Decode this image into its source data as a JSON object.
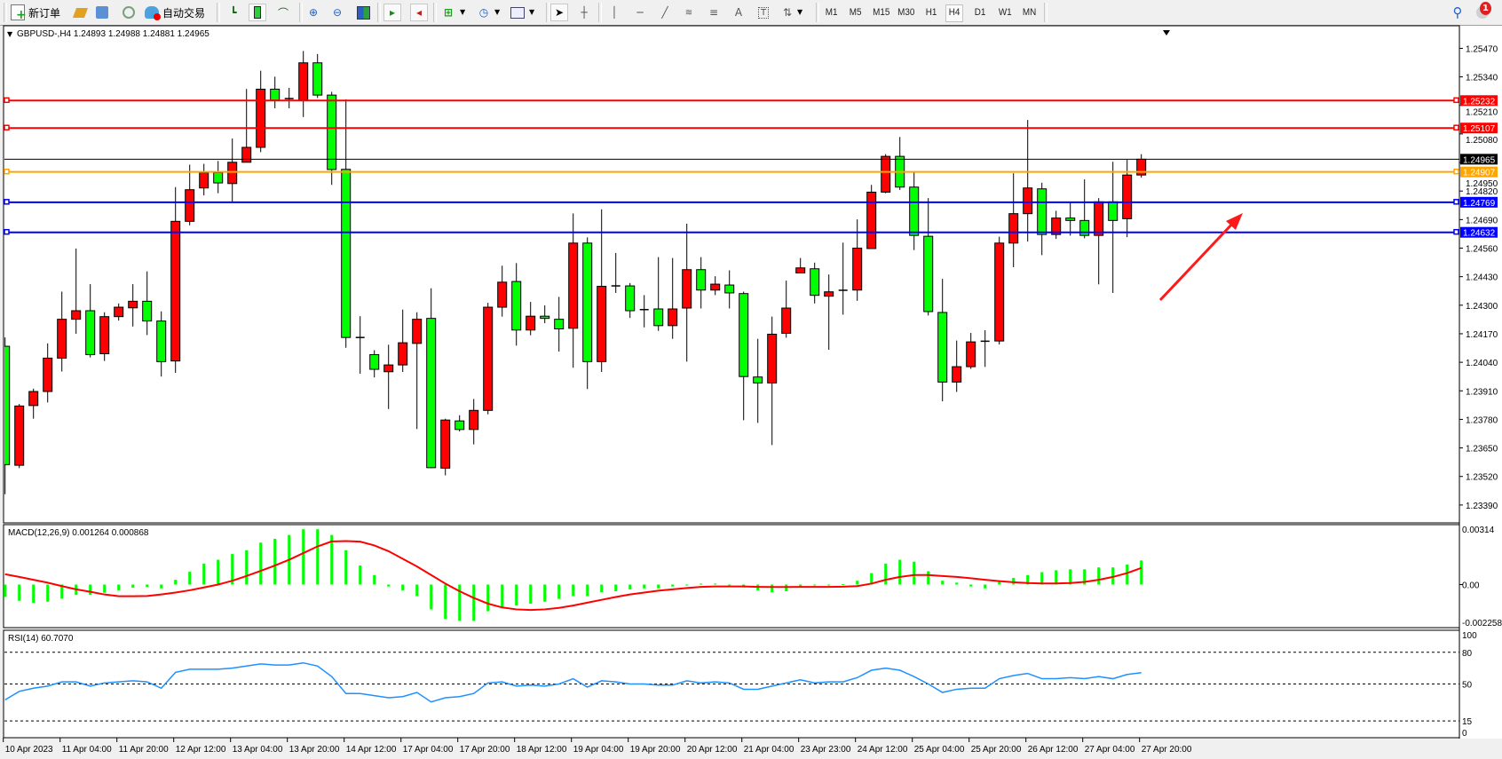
{
  "toolbar": {
    "new_order_label": "新订单",
    "auto_trading_label": "自动交易",
    "timeframes": [
      "M1",
      "M5",
      "M15",
      "M30",
      "H1",
      "H4",
      "D1",
      "W1",
      "MN"
    ],
    "active_timeframe": "H4",
    "notification_count": "1",
    "icons": [
      "new-order-icon",
      "metaeditor-icon",
      "market-watch-icon",
      "signals-icon",
      "auto-trading-icon",
      "bar-chart-icon",
      "candlestick-icon",
      "line-chart-icon",
      "zoom-in-icon",
      "zoom-out-icon",
      "tile-windows-icon",
      "auto-scroll-icon",
      "chart-shift-icon",
      "indicators-icon",
      "periods-icon",
      "templates-icon",
      "cursor-icon",
      "crosshair-icon",
      "vertical-line-icon",
      "horizontal-line-icon",
      "trendline-icon",
      "fibonacci-expansion-icon",
      "fibonacci-retracement-icon",
      "text-icon",
      "text-label-icon",
      "arrows-icon",
      "search-icon",
      "notification-icon"
    ]
  },
  "chart": {
    "title": "GBPUSD-,H4  1.24893 1.24988 1.24881 1.24965",
    "macd_label": "MACD(12,26,9) 0.001264 0.000868",
    "rsi_label": "RSI(14) 60.7070"
  },
  "chart_data": [
    {
      "type": "candlestick",
      "symbol": "GBPUSD-",
      "timeframe": "H4",
      "colors": {
        "bull": "#ff0000",
        "bear": "#00ff00",
        "doji": "#000000",
        "background": "#ffffff"
      },
      "x_labels": [
        "10 Apr 2023",
        "11 Apr 04:00",
        "11 Apr 20:00",
        "12 Apr 12:00",
        "13 Apr 04:00",
        "13 Apr 20:00",
        "14 Apr 12:00",
        "17 Apr 04:00",
        "17 Apr 20:00",
        "18 Apr 12:00",
        "19 Apr 04:00",
        "19 Apr 20:00",
        "20 Apr 12:00",
        "21 Apr 04:00",
        "23 Apr 23:00",
        "24 Apr 12:00",
        "25 Apr 04:00",
        "25 Apr 20:00",
        "26 Apr 12:00",
        "27 Apr 04:00",
        "27 Apr 20:00"
      ],
      "x_label_every": 4,
      "y_ticks": [
        "1.25470",
        "1.25340",
        "1.25210",
        "1.25080",
        "1.24950",
        "1.24820",
        "1.24690",
        "1.24560",
        "1.24430",
        "1.24300",
        "1.24170",
        "1.24040",
        "1.23910",
        "1.23780",
        "1.23650",
        "1.23520",
        "1.23390"
      ],
      "ylim": [
        1.23313,
        1.25573
      ],
      "ohlc_order": [
        "open",
        "high",
        "low",
        "close"
      ],
      "ohlc": [
        [
          1.24113,
          1.24153,
          1.23439,
          1.23574
        ],
        [
          1.23571,
          1.2385,
          1.23558,
          1.23841
        ],
        [
          1.23843,
          1.2392,
          1.23783,
          1.23907
        ],
        [
          1.23907,
          1.24126,
          1.23857,
          1.24059
        ],
        [
          1.24059,
          1.24362,
          1.23998,
          1.24236
        ],
        [
          1.24236,
          1.24558,
          1.2417,
          1.24275
        ],
        [
          1.24275,
          1.24396,
          1.24062,
          1.24075
        ],
        [
          1.24079,
          1.24268,
          1.24046,
          1.24248
        ],
        [
          1.24248,
          1.24308,
          1.2423,
          1.24291
        ],
        [
          1.24288,
          1.24396,
          1.24203,
          1.24318
        ],
        [
          1.24318,
          1.24454,
          1.24164,
          1.24228
        ],
        [
          1.24228,
          1.24272,
          1.23975,
          1.24043
        ],
        [
          1.24046,
          1.24838,
          1.23992,
          1.24682
        ],
        [
          1.24682,
          1.2494,
          1.24664,
          1.24826
        ],
        [
          1.24834,
          1.24944,
          1.248,
          1.24904
        ],
        [
          1.24904,
          1.24957,
          1.2481,
          1.24857
        ],
        [
          1.24854,
          1.25059,
          1.24771,
          1.24951
        ],
        [
          1.24951,
          1.25285,
          1.24951,
          1.25019
        ],
        [
          1.25019,
          1.25368,
          1.24997,
          1.25284
        ],
        [
          1.25284,
          1.25341,
          1.25197,
          1.25234
        ],
        [
          1.25241,
          1.2529,
          1.25197,
          1.25241
        ],
        [
          1.25234,
          1.25458,
          1.25157,
          1.25404
        ],
        [
          1.25404,
          1.25444,
          1.25244,
          1.25257
        ],
        [
          1.25257,
          1.25272,
          1.24848,
          1.24918
        ],
        [
          1.24919,
          1.25238,
          1.24106,
          1.24153
        ],
        [
          1.24153,
          1.2425,
          1.23988,
          1.24153
        ],
        [
          1.24075,
          1.24095,
          1.23971,
          1.24008
        ],
        [
          1.23997,
          1.2412,
          1.23827,
          1.24028
        ],
        [
          1.24028,
          1.2428,
          1.23996,
          1.24129
        ],
        [
          1.24126,
          1.24268,
          1.23736,
          1.24236
        ],
        [
          1.2424,
          1.24377,
          1.23558,
          1.2356
        ],
        [
          1.23558,
          1.23783,
          1.23525,
          1.23777
        ],
        [
          1.23773,
          1.23799,
          1.23725,
          1.23734
        ],
        [
          1.23734,
          1.23873,
          1.23666,
          1.23821
        ],
        [
          1.23821,
          1.24311,
          1.23803,
          1.24291
        ],
        [
          1.24291,
          1.2448,
          1.24248,
          1.24405
        ],
        [
          1.24408,
          1.24492,
          1.24116,
          1.24187
        ],
        [
          1.24187,
          1.24315,
          1.24163,
          1.2425
        ],
        [
          1.2425,
          1.24299,
          1.24218,
          1.2424
        ],
        [
          1.24236,
          1.24338,
          1.24089,
          1.24192
        ],
        [
          1.24195,
          1.24718,
          1.24015,
          1.24583
        ],
        [
          1.24583,
          1.24609,
          1.23918,
          1.24043
        ],
        [
          1.24043,
          1.24737,
          1.23996,
          1.24386
        ],
        [
          1.24388,
          1.24538,
          1.24356,
          1.24388
        ],
        [
          1.24388,
          1.24401,
          1.24242,
          1.24275
        ],
        [
          1.2428,
          1.24346,
          1.24199,
          1.2428
        ],
        [
          1.24283,
          1.24519,
          1.24183,
          1.24207
        ],
        [
          1.24207,
          1.24515,
          1.24147,
          1.24283
        ],
        [
          1.24287,
          1.24671,
          1.24043,
          1.24462
        ],
        [
          1.24462,
          1.24519,
          1.24285,
          1.24369
        ],
        [
          1.24369,
          1.24432,
          1.24346,
          1.24396
        ],
        [
          1.24392,
          1.24459,
          1.24285,
          1.24356
        ],
        [
          1.24353,
          1.24362,
          1.23776,
          1.23975
        ],
        [
          1.23973,
          1.24147,
          1.23764,
          1.23946
        ],
        [
          1.23946,
          1.24248,
          1.23663,
          1.24168
        ],
        [
          1.24172,
          1.24412,
          1.24152,
          1.24287
        ],
        [
          1.24447,
          1.24515,
          1.24447,
          1.2447
        ],
        [
          1.24466,
          1.24494,
          1.24308,
          1.24345
        ],
        [
          1.24341,
          1.2444,
          1.24097,
          1.24361
        ],
        [
          1.24368,
          1.24585,
          1.24257,
          1.24368
        ],
        [
          1.24369,
          1.24691,
          1.2432,
          1.2456
        ],
        [
          1.24558,
          1.24848,
          1.24558,
          1.24815
        ],
        [
          1.24815,
          1.24988,
          1.2481,
          1.24978
        ],
        [
          1.24978,
          1.25066,
          1.24825,
          1.24838
        ],
        [
          1.24838,
          1.24904,
          1.24551,
          1.24618
        ],
        [
          1.24614,
          1.24788,
          1.24253,
          1.24271
        ],
        [
          1.24267,
          1.2442,
          1.23862,
          1.2395
        ],
        [
          1.2395,
          1.24139,
          1.23905,
          1.2402
        ],
        [
          1.2402,
          1.24174,
          1.2401,
          1.24133
        ],
        [
          1.24136,
          1.24186,
          1.24019,
          1.24136
        ],
        [
          1.24137,
          1.24612,
          1.24121,
          1.24583
        ],
        [
          1.24583,
          1.24901,
          1.24473,
          1.24717
        ],
        [
          1.24717,
          1.25144,
          1.2459,
          1.24834
        ],
        [
          1.2483,
          1.24858,
          1.24528,
          1.24622
        ],
        [
          1.24622,
          1.2473,
          1.24602,
          1.24697
        ],
        [
          1.24697,
          1.24767,
          1.24617,
          1.24686
        ],
        [
          1.24686,
          1.24873,
          1.24605,
          1.24618
        ],
        [
          1.24618,
          1.24788,
          1.24395,
          1.24771
        ],
        [
          1.24771,
          1.24953,
          1.24356,
          1.24686
        ],
        [
          1.24694,
          1.24962,
          1.2461,
          1.24893
        ],
        [
          1.24893,
          1.24988,
          1.24881,
          1.24965
        ]
      ],
      "current_price": {
        "value": 1.24965,
        "label": "1.24965",
        "color": "#000000"
      },
      "horizontal_lines": [
        {
          "value": 1.25232,
          "label": "1.25232",
          "color": "#ff0000"
        },
        {
          "value": 1.25107,
          "label": "1.25107",
          "color": "#ff0000"
        },
        {
          "value": 1.24907,
          "label": "1.24907",
          "color": "#ffa500"
        },
        {
          "value": 1.24769,
          "label": "1.24769",
          "color": "#0000ff"
        },
        {
          "value": 1.24632,
          "label": "1.24632",
          "color": "#0000ff"
        }
      ],
      "annotation": {
        "type": "arrow",
        "color": "#ff0000",
        "direction": "up-right"
      }
    },
    {
      "type": "bar+line",
      "indicator": "MACD(12,26,9)",
      "y_ticks": [
        "0.00314",
        "0.00",
        "-0.002258"
      ],
      "ylim": [
        -0.002258,
        0.00314
      ],
      "histogram_color": "#00ff00",
      "signal_color": "#ff0000",
      "histogram": [
        -0.00065,
        -0.00085,
        -0.00096,
        -0.0009,
        -0.00074,
        -0.00054,
        -0.00054,
        -0.00043,
        -0.0003,
        -0.00016,
        -0.00012,
        -0.0002,
        0.00025,
        0.00067,
        0.0011,
        0.0013,
        0.0016,
        0.0018,
        0.0022,
        0.0024,
        0.0026,
        0.0029,
        0.0029,
        0.0026,
        0.0018,
        0.001,
        0.0005,
        -0.0001,
        -0.0003,
        -0.0006,
        -0.0013,
        -0.0018,
        -0.0019,
        -0.0019,
        -0.0014,
        -0.0012,
        -0.0011,
        -0.001,
        -0.0009,
        -0.00075,
        -0.0006,
        -0.0006,
        -0.0004,
        -0.00035,
        -0.00025,
        -0.0002,
        -0.0002,
        -0.0001,
        -5e-05,
        5e-05,
        5e-05,
        0.0,
        -0.00015,
        -0.0003,
        -0.0004,
        -0.00035,
        -0.00015,
        -5e-05,
        -5e-05,
        2e-05,
        0.0002,
        0.0006,
        0.0011,
        0.0013,
        0.0012,
        0.0007,
        0.0002,
        0.0001,
        -0.0001,
        -0.0002,
        0.00015,
        0.00035,
        0.0005,
        0.00065,
        0.00075,
        0.0008,
        0.0008,
        0.0009,
        0.0009,
        0.00105,
        0.001264
      ],
      "signal": [
        0.00054,
        0.0004,
        0.00025,
        0.0001,
        -8e-05,
        -0.00025,
        -0.00038,
        -0.00052,
        -0.00061,
        -0.00061,
        -0.0006,
        -0.00052,
        -0.00042,
        -0.0003,
        -0.00015,
        0.0,
        0.0002,
        0.00045,
        0.00072,
        0.001,
        0.0013,
        0.00165,
        0.002,
        0.00226,
        0.00228,
        0.00225,
        0.00205,
        0.00175,
        0.00135,
        0.00095,
        0.0005,
        5e-05,
        -0.00035,
        -0.0007,
        -0.001,
        -0.0012,
        -0.0013,
        -0.00133,
        -0.0013,
        -0.00122,
        -0.0011,
        -0.00095,
        -0.0008,
        -0.00065,
        -0.00052,
        -0.00042,
        -0.00032,
        -0.00025,
        -0.00018,
        -0.00012,
        -0.0001,
        -0.0001,
        -0.0001,
        -0.00012,
        -0.00013,
        -0.00013,
        -0.00012,
        -0.00012,
        -0.00012,
        -0.00011,
        -8e-05,
        5e-05,
        0.00025,
        0.0004,
        0.0005,
        0.0005,
        0.00045,
        0.0004,
        0.00033,
        0.00025,
        0.00018,
        0.00012,
        8e-05,
        6e-05,
        6e-05,
        8e-05,
        0.00014,
        0.00025,
        0.0004,
        0.0006,
        0.000868
      ]
    },
    {
      "type": "line",
      "indicator": "RSI(14)",
      "y_ticks": [
        "100",
        "80",
        "50",
        "15",
        "0"
      ],
      "ylim": [
        0,
        100
      ],
      "levels": [
        80,
        50,
        15
      ],
      "line_color": "#1e90ff",
      "values": [
        35,
        43,
        46,
        48,
        52,
        52,
        48,
        51,
        52,
        53,
        52,
        46,
        61,
        64,
        64,
        64,
        65,
        67,
        69,
        68,
        68,
        70,
        67,
        57,
        41,
        41,
        39,
        37,
        38,
        42,
        33,
        37,
        38,
        41,
        51,
        52,
        48,
        49,
        48,
        50,
        55,
        47,
        53,
        52,
        50,
        50,
        49,
        49,
        53,
        51,
        52,
        51,
        45,
        45,
        48,
        51,
        54,
        51,
        52,
        52,
        56,
        63,
        65,
        63,
        57,
        50,
        42,
        45,
        46,
        46,
        55,
        58,
        60,
        55,
        55,
        56,
        55,
        57,
        55,
        59,
        60.707
      ]
    }
  ]
}
